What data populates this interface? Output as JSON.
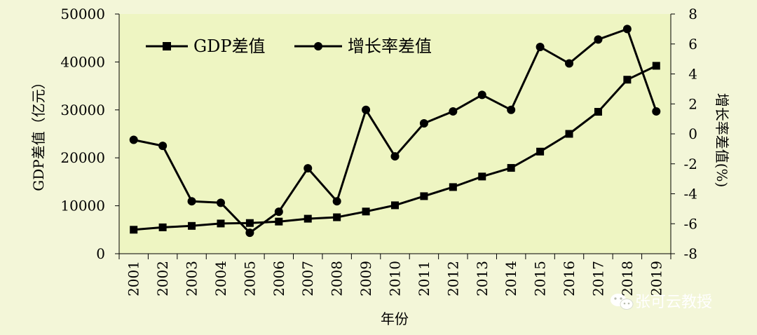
{
  "chart_data": {
    "type": "line",
    "categories": [
      "2001",
      "2002",
      "2003",
      "2004",
      "2005",
      "2006",
      "2007",
      "2008",
      "2009",
      "2010",
      "2011",
      "2012",
      "2013",
      "2014",
      "2015",
      "2016",
      "2017",
      "2018",
      "2019"
    ],
    "series": [
      {
        "name": "GDP差值",
        "axis": "left",
        "marker": "square",
        "values": [
          5000,
          5500,
          5800,
          6300,
          6400,
          6700,
          7300,
          7600,
          8800,
          10100,
          12000,
          13900,
          16100,
          17900,
          21300,
          25000,
          29600,
          36300,
          39200
        ]
      },
      {
        "name": "增长率差值",
        "axis": "right",
        "marker": "circle",
        "values": [
          -0.4,
          -0.8,
          -4.5,
          -4.6,
          -6.6,
          -5.2,
          -2.3,
          -4.5,
          1.6,
          -1.5,
          0.7,
          1.5,
          2.6,
          1.6,
          5.8,
          4.7,
          6.3,
          7.0,
          1.5
        ]
      }
    ],
    "xlabel": "年份",
    "ylabel_left": "GDP差值（亿元）",
    "ylabel_right": "增长率差值(%)",
    "ylim_left": [
      0,
      50000
    ],
    "ylim_right": [
      -8,
      8
    ],
    "yticks_left": [
      "0",
      "10000",
      "20000",
      "30000",
      "40000",
      "50000"
    ],
    "yticks_right": [
      "-8",
      "-6",
      "-4",
      "-2",
      "0",
      "2",
      "4",
      "6",
      "8"
    ],
    "grid": false,
    "legend_position": "top-left",
    "line_color": "#000000",
    "plot_background": "#eef5c2",
    "page_background": "#f3f6d8"
  },
  "watermark": {
    "icon": "wechat-icon",
    "text": "张可云教授"
  }
}
